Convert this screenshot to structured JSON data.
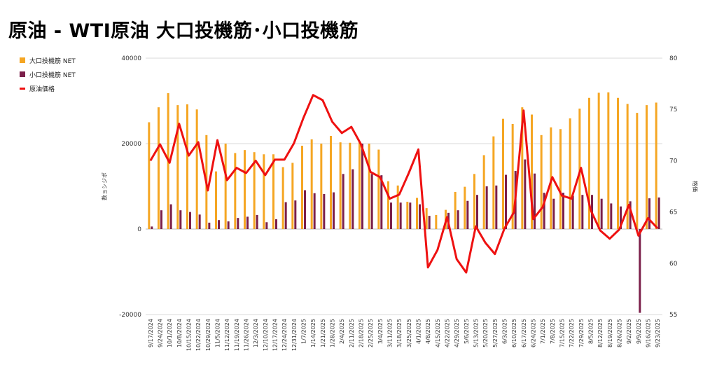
{
  "title": "原油 - WTI原油 大口投機筋･小口投機筋",
  "chart_data": {
    "type": "bar+line",
    "title": "原油 - WTI原油 大口投機筋･小口投機筋",
    "categories": [
      "9/17/2024",
      "9/24/2024",
      "10/1/2024",
      "10/8/2024",
      "10/15/2024",
      "10/22/2024",
      "10/29/2024",
      "11/5/2024",
      "11/12/2024",
      "11/19/2024",
      "11/26/2024",
      "12/3/2024",
      "12/10/2024",
      "12/17/2024",
      "12/24/2024",
      "12/31/2024",
      "1/7/2025",
      "1/14/2025",
      "1/21/2025",
      "1/28/2025",
      "2/4/2025",
      "2/11/2025",
      "2/18/2025",
      "2/25/2025",
      "3/4/2025",
      "3/11/2025",
      "3/18/2025",
      "3/25/2025",
      "4/1/2025",
      "4/8/2025",
      "4/15/2025",
      "4/22/2025",
      "4/29/2025",
      "5/6/2025",
      "5/13/2025",
      "5/20/2025",
      "5/27/2025",
      "6/3/2025",
      "6/10/2025",
      "6/17/2025",
      "6/24/2025",
      "7/1/2025",
      "7/8/2025",
      "7/15/2025",
      "7/22/2025",
      "7/29/2025",
      "8/5/2025",
      "8/12/2025",
      "8/19/2025",
      "8/26/2025",
      "9/2/2025",
      "9/9/2025",
      "9/16/2025",
      "9/23/2025"
    ],
    "series": [
      {
        "name": "大口投機筋 NET",
        "axis": "left",
        "kind": "bar",
        "color": "#f5a623",
        "values": [
          25000,
          28500,
          31800,
          29000,
          29200,
          28000,
          22000,
          13500,
          20000,
          17800,
          18500,
          18000,
          17500,
          17500,
          14500,
          15500,
          19500,
          21000,
          20000,
          21800,
          20300,
          20200,
          20500,
          20000,
          18600,
          11200,
          10200,
          6400,
          7300,
          4900,
          3300,
          4500,
          8700,
          9900,
          12900,
          17300,
          21700,
          25800,
          24600,
          28500,
          26800,
          22000,
          23800,
          23400,
          25900,
          28200,
          30700,
          31900,
          32000,
          30700,
          29300,
          27200,
          29000,
          29600
        ]
      },
      {
        "name": "小口投機筋 NET",
        "axis": "left",
        "kind": "bar",
        "color": "#7b1f4a",
        "values": [
          600,
          4400,
          5800,
          4400,
          4000,
          3400,
          1500,
          2100,
          1800,
          2600,
          2900,
          3300,
          1600,
          2300,
          6300,
          6700,
          9100,
          8400,
          8200,
          8600,
          12900,
          14000,
          20000,
          12900,
          12600,
          6200,
          6200,
          6200,
          5800,
          3100,
          0,
          3800,
          4400,
          6600,
          8000,
          10000,
          10200,
          12700,
          13600,
          16300,
          13000,
          8500,
          7100,
          8500,
          7800,
          8000,
          8000,
          7100,
          6000,
          5300,
          6500,
          -19600,
          7200,
          7400
        ]
      },
      {
        "name": "原油価格",
        "axis": "right",
        "kind": "line",
        "color": "#ee1111",
        "values": [
          70.0,
          71.6,
          69.8,
          73.6,
          70.5,
          71.8,
          67.1,
          72.0,
          68.1,
          69.3,
          68.8,
          70.0,
          68.6,
          70.1,
          70.1,
          71.7,
          74.2,
          76.4,
          75.9,
          73.8,
          72.7,
          73.3,
          71.6,
          68.9,
          68.4,
          66.3,
          66.7,
          68.8,
          71.1,
          59.6,
          61.3,
          64.5,
          60.4,
          59.1,
          63.6,
          62.0,
          60.9,
          63.4,
          65.0,
          74.9,
          64.3,
          65.5,
          68.4,
          66.6,
          66.3,
          69.3,
          65.2,
          63.2,
          62.4,
          63.3,
          65.7,
          62.7,
          64.4,
          63.4
        ]
      }
    ],
    "y_left": {
      "label": "数ョシジポ",
      "min": -20000,
      "max": 40000,
      "ticks": [
        -20000,
        0,
        20000,
        40000
      ]
    },
    "y_right": {
      "label": "格価",
      "min": 55,
      "max": 80,
      "ticks": [
        55,
        60,
        65,
        70,
        75,
        80
      ]
    },
    "grid": true,
    "legend_position": "top-left"
  }
}
